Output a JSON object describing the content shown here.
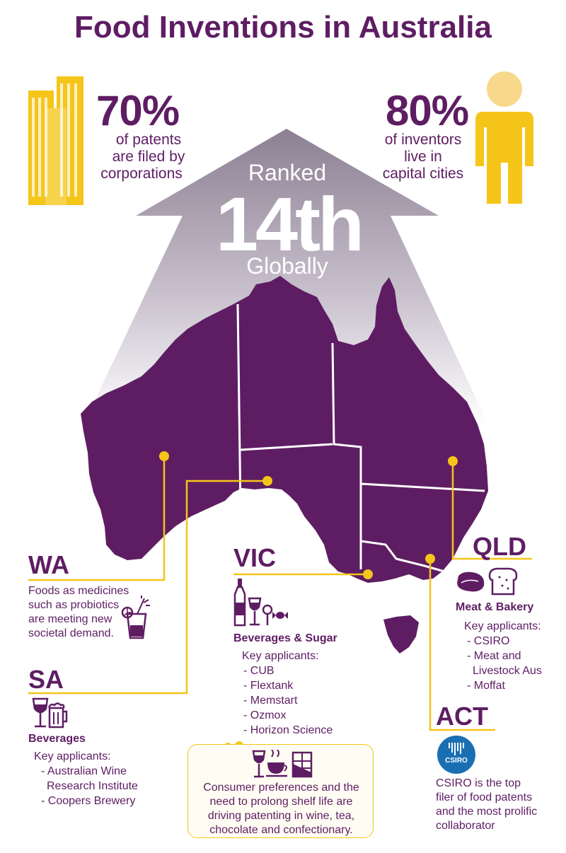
{
  "title": "Food Inventions in Australia",
  "colors": {
    "purple": "#5e1d63",
    "yellow": "#f5c519",
    "grey": "#8f8395"
  },
  "stats": {
    "left": {
      "value": "70%",
      "line1": "of patents",
      "line2": "are filed by",
      "line3": "corporations",
      "icon": "buildings-icon"
    },
    "right": {
      "value": "80%",
      "line1": "of inventors",
      "line2": "live in",
      "line3": "capital cities",
      "icon": "person-icon"
    }
  },
  "rank": {
    "top": "Ranked",
    "value": "14th",
    "bottom": "Globally"
  },
  "wa": {
    "label": "WA",
    "lines": [
      "Foods as medicines",
      "such as probiotics",
      "are meeting new",
      "societal demand."
    ],
    "icon": "cocktail-icon"
  },
  "sa": {
    "label": "SA",
    "category": "Beverages",
    "applicants_title": "Key applicants:",
    "applicants": [
      "- Australian Wine",
      "  Research Institute",
      "- Coopers Brewery"
    ],
    "icons": [
      "wine-glass-icon",
      "beer-mug-icon"
    ]
  },
  "vic": {
    "label": "VIC",
    "category": "Beverages & Sugar",
    "applicants_title": "Key applicants:",
    "applicants": [
      "- CUB",
      "- Flextank",
      "- Memstart",
      "- Ozmox",
      "- Horizon Science"
    ],
    "icons": [
      "wine-bottle-icon",
      "wine-glass-icon",
      "lollipop-icon",
      "candy-icon"
    ]
  },
  "qld": {
    "label": "QLD",
    "category": "Meat & Bakery",
    "applicants_title": "Key applicants:",
    "applicants": [
      "- CSIRO",
      "- Meat and",
      "  Livestock Aus",
      "- Moffat"
    ],
    "icons": [
      "steak-icon",
      "bread-icon"
    ]
  },
  "act": {
    "label": "ACT",
    "logo_text": "CSIRO",
    "lines": [
      "CSIRO is the top",
      "filer of food patents",
      "and the most prolific",
      "collaborator"
    ]
  },
  "note": {
    "lines": [
      "Consumer preferences and the",
      "need to prolong shelf life are",
      "driving patenting in wine, tea,",
      "chocolate and confectionary."
    ],
    "icons": [
      "wine-glass-icon",
      "tea-cup-icon",
      "chocolate-icon"
    ]
  }
}
